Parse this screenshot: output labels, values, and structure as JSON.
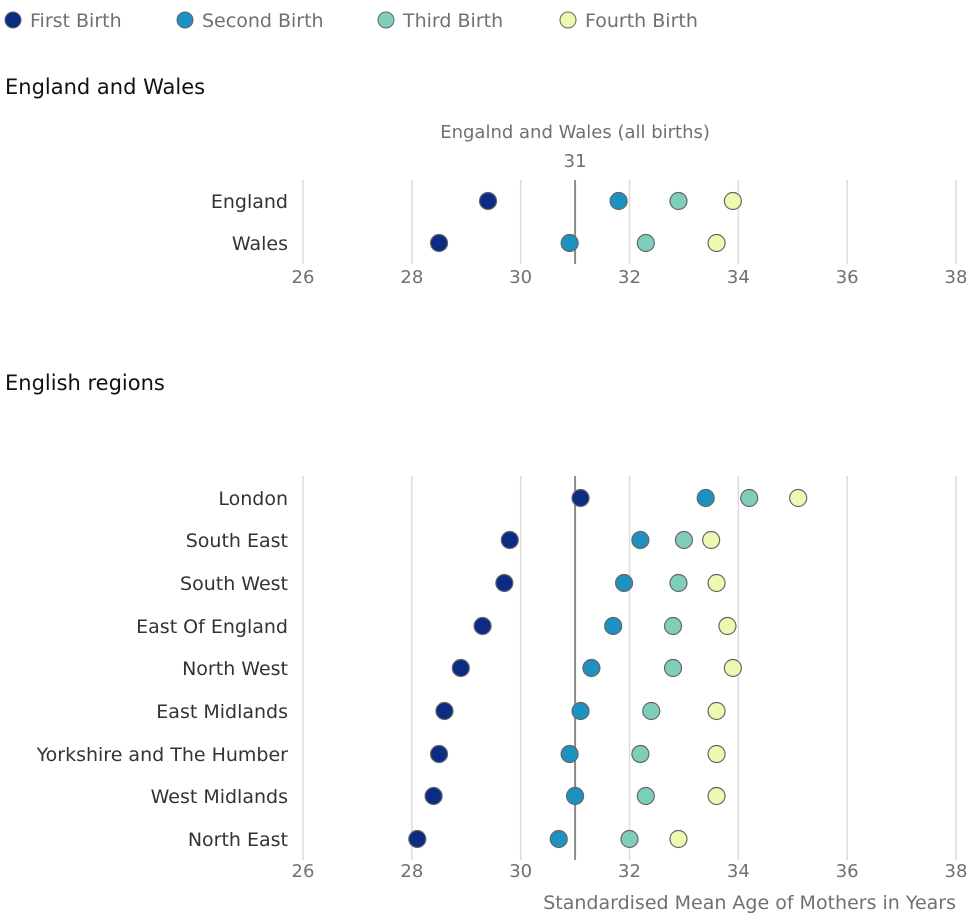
{
  "legend": [
    {
      "name": "First Birth",
      "color": "#0c2c84"
    },
    {
      "name": "Second Birth",
      "color": "#1d91c0"
    },
    {
      "name": "Third Birth",
      "color": "#7fcdbb"
    },
    {
      "name": "Fourth Birth",
      "color": "#edf8b1"
    }
  ],
  "chart_data": [
    {
      "type": "scatter",
      "title": "England and Wales",
      "reference_line": {
        "label": "Engalnd and Wales (all births)",
        "value": 31,
        "value_label": "31"
      },
      "categories": [
        "England",
        "Wales"
      ],
      "series": [
        {
          "name": "First Birth",
          "values": [
            29.4,
            28.5
          ]
        },
        {
          "name": "Second Birth",
          "values": [
            31.8,
            30.9
          ]
        },
        {
          "name": "Third Birth",
          "values": [
            32.9,
            32.3
          ]
        },
        {
          "name": "Fourth Birth",
          "values": [
            33.9,
            33.6
          ]
        }
      ],
      "xlim": [
        26,
        38
      ],
      "xticks": [
        "26",
        "28",
        "30",
        "32",
        "34",
        "36",
        "38"
      ],
      "grid": true
    },
    {
      "type": "scatter",
      "title": "English regions",
      "reference_line": {
        "value": 31
      },
      "categories": [
        "London",
        "South East",
        "South West",
        "East Of England",
        "North West",
        "East Midlands",
        "Yorkshire and The Humber",
        "West Midlands",
        "North East"
      ],
      "series": [
        {
          "name": "First Birth",
          "values": [
            31.1,
            29.8,
            29.7,
            29.3,
            28.9,
            28.6,
            28.5,
            28.4,
            28.1
          ]
        },
        {
          "name": "Second Birth",
          "values": [
            33.4,
            32.2,
            31.9,
            31.7,
            31.3,
            31.1,
            30.9,
            31.0,
            30.7
          ]
        },
        {
          "name": "Third Birth",
          "values": [
            34.2,
            33.0,
            32.9,
            32.8,
            32.8,
            32.4,
            32.2,
            32.3,
            32.0
          ]
        },
        {
          "name": "Fourth Birth",
          "values": [
            35.1,
            33.5,
            33.6,
            33.8,
            33.9,
            33.6,
            33.6,
            33.6,
            32.9
          ]
        }
      ],
      "xlim": [
        26,
        38
      ],
      "xticks": [
        "26",
        "28",
        "30",
        "32",
        "34",
        "36",
        "38"
      ],
      "xlabel": "Standardised Mean Age of Mothers in Years",
      "grid": true
    }
  ]
}
